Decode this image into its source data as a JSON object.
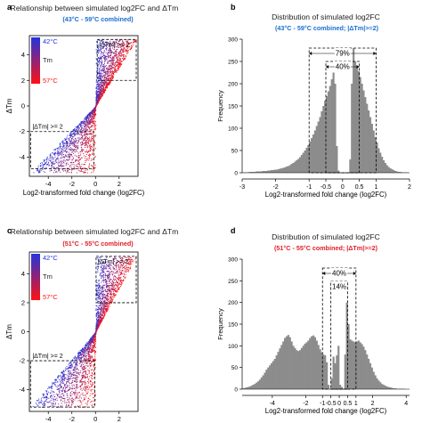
{
  "chart_data": [
    {
      "panel": "a",
      "type": "scatter",
      "title": "Relationship between simulated log2FC and ΔTm",
      "subtitle": "(43°C - 59°C combined)",
      "subtitle_color": "#1a6fd1",
      "xlabel": "Log2-transformed fold change (log2FC)",
      "ylabel": "ΔTm",
      "xlim": [
        -5.6,
        3.6
      ],
      "ylim": [
        -5.5,
        5.5
      ],
      "xticks": [
        -4,
        -2,
        0,
        2
      ],
      "yticks": [
        -4,
        -2,
        0,
        2,
        4
      ],
      "legend": {
        "title": "Tm",
        "high_label": "42°C",
        "low_label": "57°C",
        "colors": [
          "#2233dd",
          "#ff1111"
        ],
        "position": "top-left"
      },
      "annotations": [
        "|ΔTm| >= 2",
        "|ΔTm| >= 2"
      ],
      "boxes": [
        {
          "x": [
            -5.5,
            -0.15
          ],
          "y": [
            -4.9,
            -2
          ]
        },
        {
          "x": [
            0.15,
            3.45
          ],
          "y": [
            2,
            5.2
          ]
        }
      ],
      "point_cloud": {
        "n": 2600,
        "tm_range": [
          2,
          5.2
        ],
        "max_fc_pos": 3.45,
        "max_fc_neg": -5.5
      }
    },
    {
      "panel": "b",
      "type": "bar",
      "title": "Distribution of simulated log2FC",
      "subtitle": "(43°C - 59°C combined; |ΔTm|>=2)",
      "subtitle_color": "#1a6fd1",
      "xlabel": "Log2-transformed fold change (log2FC)",
      "ylabel": "Frequency",
      "xlim": [
        -3,
        2
      ],
      "ylim": [
        0,
        300
      ],
      "xticks": [
        -3,
        -2,
        -1,
        -0.5,
        0,
        0.5,
        1,
        2
      ],
      "xticklabels": [
        "-3",
        "-2",
        "-1",
        "-0.5",
        "0",
        "0.5",
        "1",
        "2"
      ],
      "yticks": [
        0,
        50,
        100,
        150,
        200,
        250,
        300
      ],
      "bin_start": -3,
      "bin_width": 0.05,
      "values": [
        1,
        1,
        1,
        1,
        2,
        2,
        2,
        2,
        3,
        3,
        3,
        3,
        4,
        4,
        4,
        5,
        5,
        6,
        6,
        7,
        7,
        8,
        9,
        10,
        11,
        12,
        14,
        15,
        17,
        20,
        22,
        25,
        28,
        31,
        35,
        40,
        45,
        50,
        56,
        62,
        70,
        78,
        86,
        95,
        105,
        115,
        125,
        138,
        150,
        162,
        172,
        183,
        195,
        210,
        225,
        200,
        60,
        5,
        0,
        0,
        0,
        0,
        0,
        0,
        30,
        200,
        280,
        250,
        240,
        228,
        215,
        200,
        185,
        170,
        155,
        140,
        125,
        110,
        95,
        80,
        68,
        55,
        45,
        36,
        28,
        22,
        17,
        13,
        10,
        8,
        6,
        4,
        3,
        2,
        2,
        1,
        1,
        1,
        1,
        0
      ],
      "annotations": [
        {
          "label": "79%",
          "range": [
            -1,
            1
          ]
        },
        {
          "label": "40%",
          "range": [
            -0.5,
            0.5
          ]
        }
      ]
    },
    {
      "panel": "c",
      "type": "scatter",
      "title": "Relationship between simulated log2FC and ΔTm",
      "subtitle": "(51°C - 55°C combined)",
      "subtitle_color": "#e0202a",
      "xlabel": "Log2-transformed fold change (log2FC)",
      "ylabel": "ΔTm",
      "xlim": [
        -5.6,
        3.6
      ],
      "ylim": [
        -5.5,
        5.5
      ],
      "xticks": [
        -4,
        -2,
        0,
        2
      ],
      "yticks": [
        -4,
        -2,
        0,
        2,
        4
      ],
      "legend": {
        "title": "Tm",
        "high_label": "42°C",
        "low_label": "57°C",
        "colors": [
          "#2233dd",
          "#ff1111"
        ],
        "position": "top-left"
      },
      "annotations": [
        "|ΔTm| >= 2",
        "|ΔTm| >= 2"
      ],
      "boxes": [
        {
          "x": [
            -5.5,
            -0.05
          ],
          "y": [
            -5.2,
            -2
          ]
        },
        {
          "x": [
            0.05,
            3.45
          ],
          "y": [
            2,
            5.2
          ]
        }
      ],
      "point_cloud": {
        "n": 2600,
        "tm_range": [
          2,
          5.2
        ],
        "max_fc_pos": 3.45,
        "max_fc_neg": -5.5
      }
    },
    {
      "panel": "d",
      "type": "bar",
      "title": "Distribution of simulated log2FC",
      "subtitle": "(51°C - 55°C combined; |ΔTm|>=2)",
      "subtitle_color": "#e0202a",
      "xlabel": "Log2-transformed fold change (log2FC)",
      "ylabel": "Frequency",
      "xlim": [
        -5.8,
        4.2
      ],
      "ylim": [
        0,
        300
      ],
      "xticks": [
        -4,
        -2,
        -1,
        -0.5,
        0,
        0.5,
        1,
        2,
        4
      ],
      "xticklabels": [
        "-4",
        "-2",
        "-1",
        "-0.5",
        "0",
        "0.5",
        "1",
        "2",
        "4"
      ],
      "yticks": [
        0,
        50,
        100,
        150,
        200,
        250,
        300
      ],
      "bin_start": -5.8,
      "bin_width": 0.1,
      "values": [
        2,
        3,
        4,
        5,
        6,
        8,
        10,
        12,
        15,
        18,
        22,
        27,
        32,
        38,
        45,
        50,
        55,
        60,
        65,
        70,
        78,
        86,
        94,
        102,
        110,
        118,
        122,
        125,
        120,
        110,
        100,
        95,
        90,
        88,
        90,
        95,
        100,
        105,
        108,
        112,
        118,
        122,
        124,
        120,
        112,
        102,
        92,
        85,
        80,
        78,
        62,
        10,
        0,
        25,
        75,
        60,
        78,
        100,
        10,
        5,
        0,
        80,
        200,
        150,
        115,
        112,
        110,
        108,
        110,
        112,
        108,
        104,
        98,
        90,
        80,
        70,
        60,
        50,
        40,
        32,
        25,
        20,
        16,
        12,
        10,
        8,
        6,
        5,
        4,
        3,
        2,
        2,
        1,
        1,
        1,
        1,
        1,
        0,
        0,
        0
      ],
      "annotations": [
        {
          "label": "40%",
          "range": [
            -1,
            1
          ]
        },
        {
          "label": "14%",
          "range": [
            -0.5,
            0.5
          ]
        }
      ]
    }
  ]
}
